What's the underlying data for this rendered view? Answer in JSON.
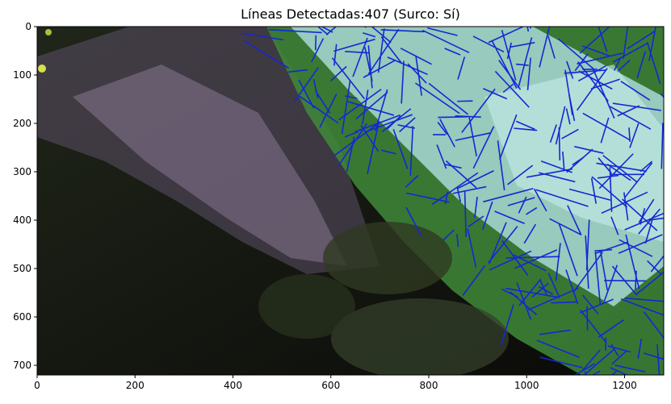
{
  "chart_data": {
    "type": "image",
    "title": "Líneas Detectadas:407 (Surco: Sí)",
    "xlabel": "",
    "ylabel": "",
    "xlim": [
      0,
      1280
    ],
    "ylim": [
      720,
      0
    ],
    "xticks": [
      0,
      200,
      400,
      600,
      800,
      1000,
      1200
    ],
    "yticks": [
      0,
      100,
      200,
      300,
      400,
      500,
      600,
      700
    ],
    "grid": false,
    "line_count": 407,
    "surco_detected": "Sí",
    "line_color": "#1428d2",
    "foreground_color": "#a9d8d6",
    "background_color": "#0a0b08"
  }
}
